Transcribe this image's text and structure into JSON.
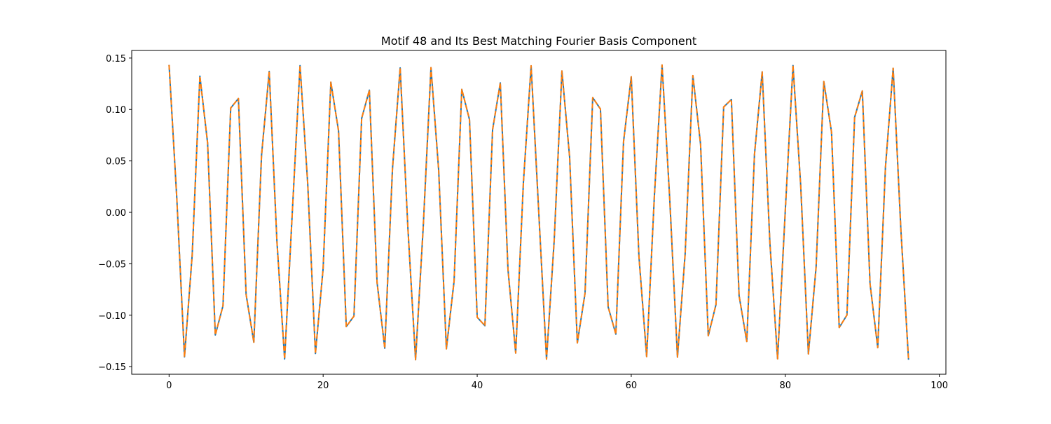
{
  "chart_data": {
    "type": "line",
    "title": "Motif 48 and Its Best Matching Fourier Basis Component",
    "xlabel": "",
    "ylabel": "",
    "xlim": [
      -4.85,
      100.85
    ],
    "ylim": [
      -0.1574,
      0.1574
    ],
    "x_ticks": [
      0,
      20,
      40,
      60,
      80,
      100
    ],
    "x_tick_labels": [
      "0",
      "20",
      "40",
      "60",
      "80",
      "100"
    ],
    "y_ticks": [
      0.15,
      0.1,
      0.05,
      0.0,
      -0.05,
      -0.1,
      -0.15
    ],
    "y_tick_labels": [
      "0.15",
      "0.10",
      "0.05",
      "0.00",
      "−0.05",
      "−0.10",
      "−0.15"
    ],
    "grid": false,
    "n_points": 97,
    "series": [
      {
        "name": "Motif 48",
        "color": "#1f77b4",
        "style": "solid",
        "description": "97-point signal, approx. 0.1433 * cos(2*pi*0.2344*n)"
      },
      {
        "name": "Best Matching Fourier Basis Component",
        "color": "#ff7f0e",
        "style": "dashed",
        "description": "97-point Fourier basis, approx. 0.1433 * cos(2*pi*0.2344*n)"
      }
    ],
    "amplitude": 0.1433,
    "frequency": 0.2344
  }
}
